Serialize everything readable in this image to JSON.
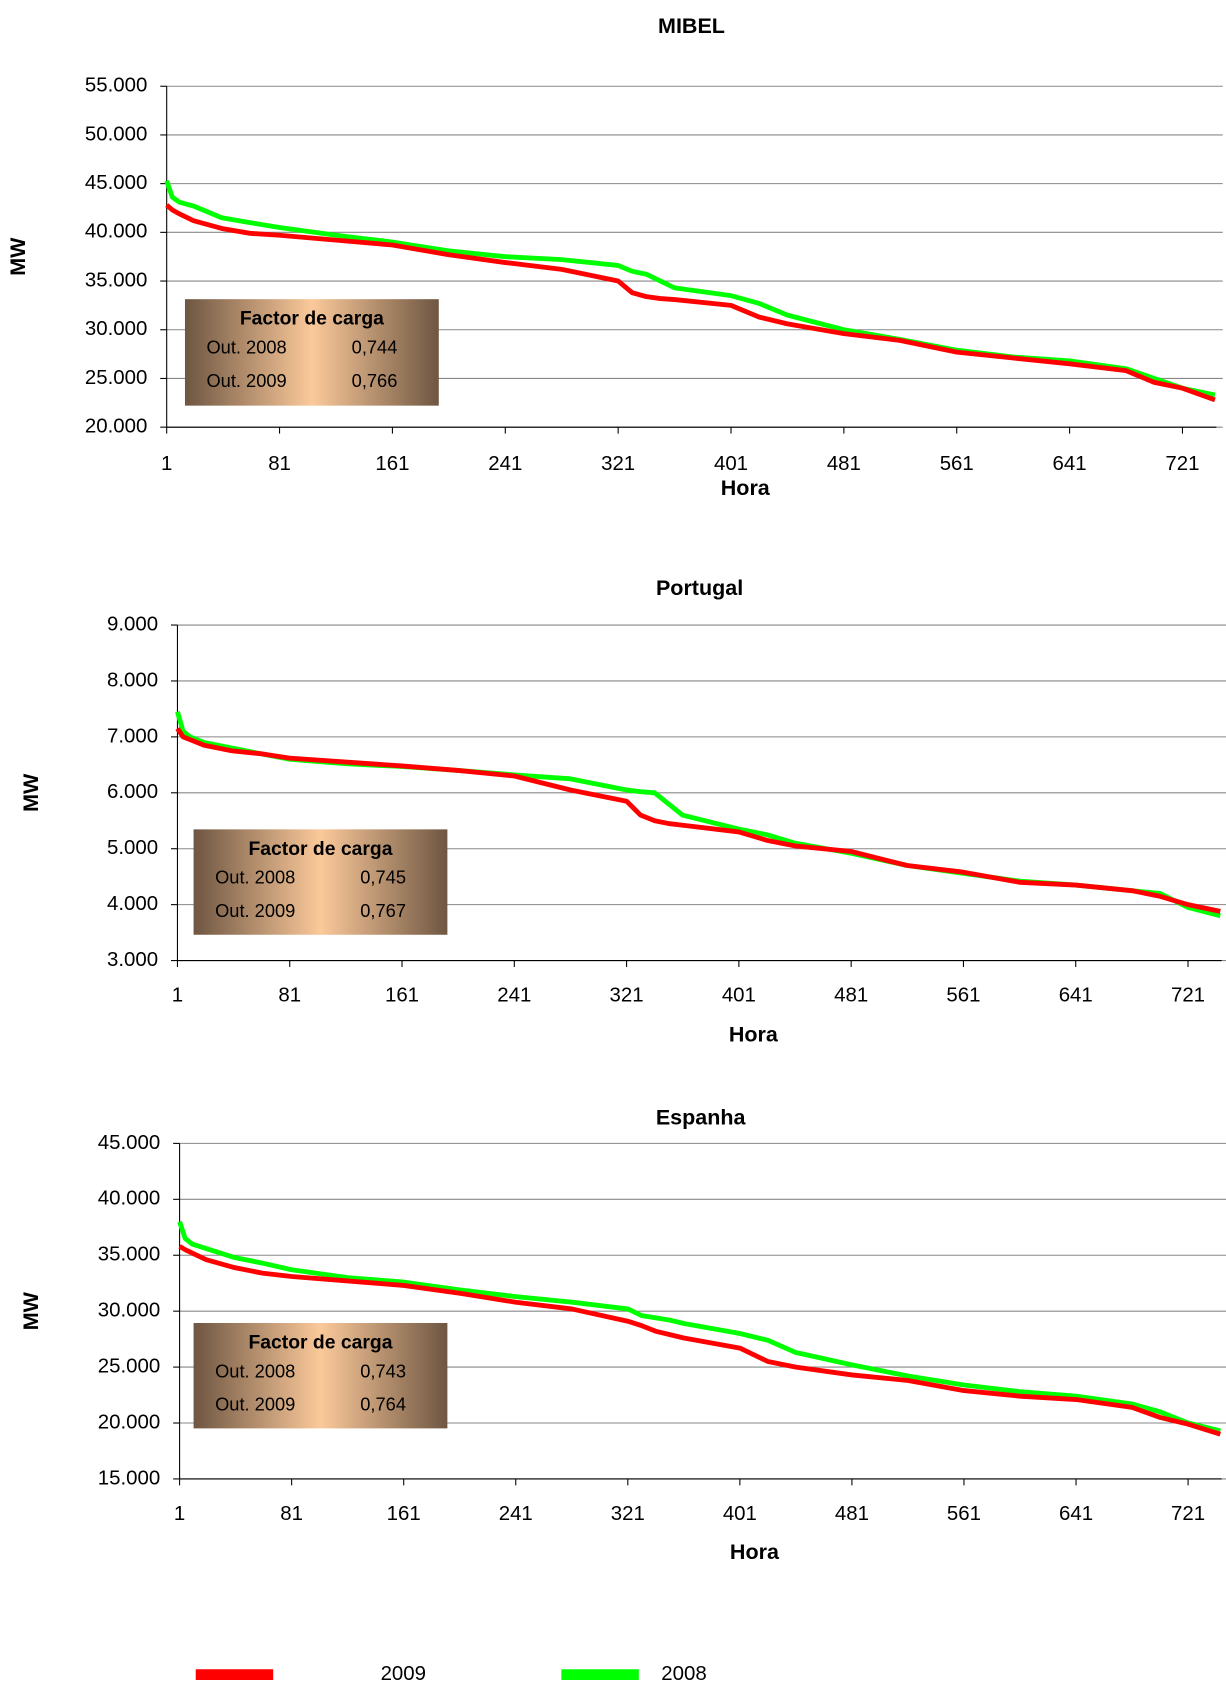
{
  "chart_data": [
    {
      "type": "line",
      "title": "MIBEL",
      "y_label": "MW",
      "x_label": "Hora",
      "x": [
        1,
        5,
        10,
        20,
        40,
        60,
        81,
        121,
        161,
        201,
        241,
        281,
        321,
        331,
        341,
        351,
        361,
        401,
        421,
        441,
        481,
        521,
        561,
        601,
        641,
        681,
        701,
        721,
        744
      ],
      "xlim": [
        1,
        745
      ],
      "xticks": [
        1,
        81,
        161,
        241,
        321,
        401,
        481,
        561,
        641,
        721
      ],
      "ylim": [
        20000,
        55000
      ],
      "yticks": [
        {
          "value": 20000,
          "label": "20.000"
        },
        {
          "value": 25000,
          "label": "25.000"
        },
        {
          "value": 30000,
          "label": "30.000"
        },
        {
          "value": 35000,
          "label": "35.000"
        },
        {
          "value": 40000,
          "label": "40.000"
        },
        {
          "value": 45000,
          "label": "45.000"
        },
        {
          "value": 50000,
          "label": "50.000"
        },
        {
          "value": 55000,
          "label": "55.000"
        }
      ],
      "grid": true,
      "series": [
        {
          "name": "2008",
          "color": "#00ff00",
          "values": [
            45300,
            43600,
            43100,
            42700,
            41500,
            41000,
            40500,
            39700,
            39000,
            38100,
            37500,
            37200,
            36600,
            36000,
            35700,
            35000,
            34300,
            33500,
            32700,
            31500,
            30000,
            29000,
            27900,
            27200,
            26800,
            26000,
            25000,
            24000,
            23300
          ]
        },
        {
          "name": "2009",
          "color": "#ff0000",
          "values": [
            42800,
            42300,
            41900,
            41200,
            40400,
            39900,
            39700,
            39200,
            38700,
            37700,
            36900,
            36200,
            35000,
            33800,
            33400,
            33200,
            33100,
            32500,
            31300,
            30600,
            29600,
            28900,
            27700,
            27100,
            26500,
            25800,
            24600,
            24000,
            22800
          ]
        }
      ],
      "table": {
        "title": "Factor de carga",
        "rows": [
          [
            "Out. 2008",
            "0,744"
          ],
          [
            "Out. 2009",
            "0,766"
          ]
        ]
      }
    },
    {
      "type": "line",
      "title": "Portugal",
      "y_label": "MW",
      "x_label": "Hora",
      "x": [
        1,
        5,
        10,
        20,
        40,
        60,
        81,
        121,
        161,
        201,
        241,
        281,
        321,
        331,
        341,
        351,
        361,
        401,
        421,
        441,
        481,
        521,
        561,
        601,
        641,
        681,
        701,
        721,
        744
      ],
      "xlim": [
        1,
        745
      ],
      "xticks": [
        1,
        81,
        161,
        241,
        321,
        401,
        481,
        561,
        641,
        721
      ],
      "ylim": [
        3000,
        9000
      ],
      "yticks": [
        {
          "value": 3000,
          "label": "3.000"
        },
        {
          "value": 4000,
          "label": "4.000"
        },
        {
          "value": 5000,
          "label": "5.000"
        },
        {
          "value": 6000,
          "label": "6.000"
        },
        {
          "value": 7000,
          "label": "7.000"
        },
        {
          "value": 8000,
          "label": "8.000"
        },
        {
          "value": 9000,
          "label": "9.000"
        }
      ],
      "grid": true,
      "series": [
        {
          "name": "2008",
          "color": "#00ff00",
          "values": [
            7450,
            7100,
            7000,
            6900,
            6800,
            6700,
            6600,
            6520,
            6470,
            6400,
            6320,
            6250,
            6050,
            6020,
            6000,
            5800,
            5600,
            5350,
            5250,
            5100,
            4920,
            4700,
            4560,
            4420,
            4350,
            4250,
            4200,
            3950,
            3800
          ]
        },
        {
          "name": "2009",
          "color": "#ff0000",
          "values": [
            7150,
            7000,
            6950,
            6850,
            6750,
            6700,
            6620,
            6550,
            6480,
            6400,
            6300,
            6050,
            5850,
            5600,
            5500,
            5450,
            5420,
            5300,
            5150,
            5050,
            4950,
            4700,
            4580,
            4400,
            4350,
            4250,
            4150,
            4000,
            3880
          ]
        }
      ],
      "table": {
        "title": "Factor de carga",
        "rows": [
          [
            "Out. 2008",
            "0,745"
          ],
          [
            "Out. 2009",
            "0,767"
          ]
        ]
      }
    },
    {
      "type": "line",
      "title": "Espanha",
      "y_label": "MW",
      "x_label": "Hora",
      "x": [
        1,
        5,
        10,
        20,
        40,
        60,
        81,
        121,
        161,
        201,
        241,
        281,
        321,
        331,
        341,
        351,
        361,
        401,
        421,
        441,
        481,
        521,
        561,
        601,
        641,
        681,
        701,
        721,
        744
      ],
      "xlim": [
        1,
        745
      ],
      "xticks": [
        1,
        81,
        161,
        241,
        321,
        401,
        481,
        561,
        641,
        721
      ],
      "ylim": [
        15000,
        45000
      ],
      "yticks": [
        {
          "value": 15000,
          "label": "15.000"
        },
        {
          "value": 20000,
          "label": "20.000"
        },
        {
          "value": 25000,
          "label": "25.000"
        },
        {
          "value": 30000,
          "label": "30.000"
        },
        {
          "value": 35000,
          "label": "35.000"
        },
        {
          "value": 40000,
          "label": "40.000"
        },
        {
          "value": 45000,
          "label": "45.000"
        }
      ],
      "grid": true,
      "series": [
        {
          "name": "2008",
          "color": "#00ff00",
          "values": [
            38000,
            36500,
            36000,
            35600,
            34800,
            34300,
            33700,
            33000,
            32600,
            31900,
            31300,
            30800,
            30200,
            29600,
            29400,
            29200,
            28900,
            28000,
            27400,
            26300,
            25200,
            24200,
            23400,
            22800,
            22400,
            21700,
            21000,
            20000,
            19300
          ]
        },
        {
          "name": "2009",
          "color": "#ff0000",
          "values": [
            35800,
            35500,
            35200,
            34600,
            33900,
            33400,
            33100,
            32700,
            32300,
            31600,
            30800,
            30200,
            29100,
            28700,
            28200,
            27900,
            27600,
            26700,
            25500,
            25000,
            24300,
            23800,
            22900,
            22400,
            22100,
            21400,
            20500,
            19900,
            19000
          ]
        }
      ],
      "table": {
        "title": "Factor de carga",
        "rows": [
          [
            "Out. 2008",
            "0,743"
          ],
          [
            "Out. 2009",
            "0,764"
          ]
        ]
      }
    }
  ]
}
